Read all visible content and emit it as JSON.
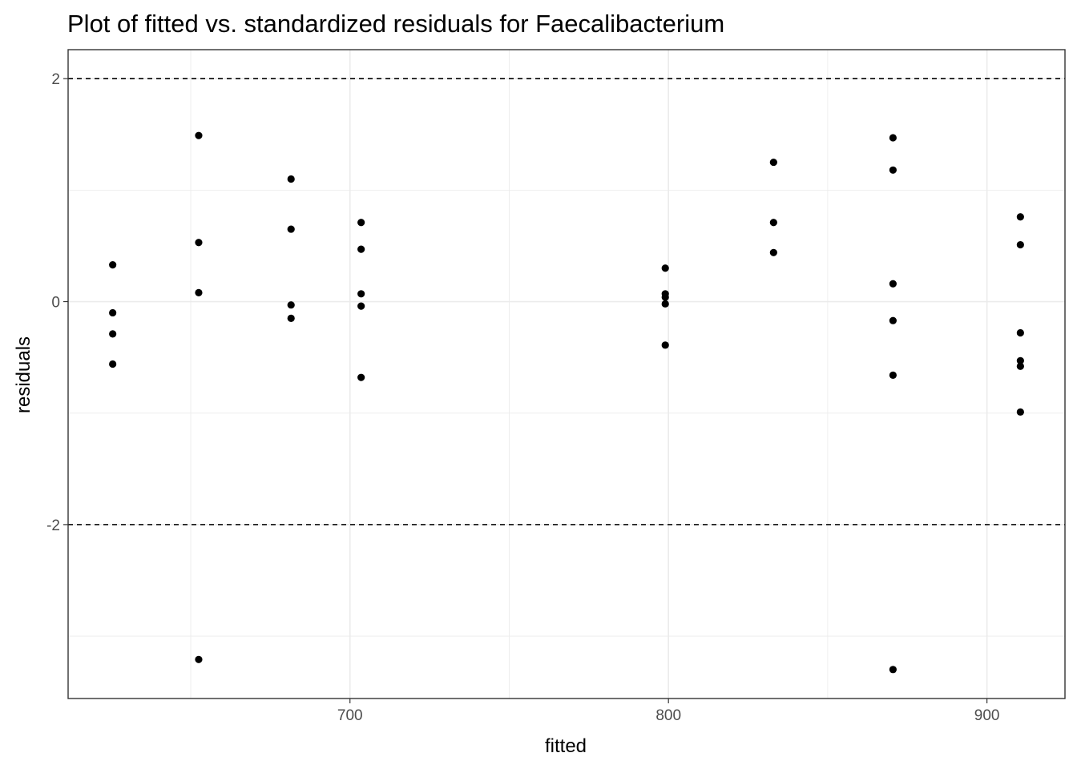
{
  "chart_data": {
    "type": "scatter",
    "title": "Plot of fitted vs. standardized residuals for Faecalibacterium",
    "xlabel": "fitted",
    "ylabel": "residuals",
    "xlim": [
      611.5,
      924.5
    ],
    "ylim": [
      -3.56,
      2.26
    ],
    "x_ticks": [
      700,
      800,
      900
    ],
    "x_tick_labels": [
      "700",
      "800",
      "900"
    ],
    "x_minor_gridlines": [
      650,
      750,
      850
    ],
    "y_ticks": [
      2,
      0,
      -2
    ],
    "y_tick_labels": [
      "2",
      "0",
      "-2"
    ],
    "y_minor_gridlines": [
      1,
      -1,
      -3
    ],
    "grid": true,
    "reference_lines": [
      {
        "y": 2,
        "style": "dashed"
      },
      {
        "y": -2,
        "style": "dashed"
      }
    ],
    "colors": {
      "points": "#000000",
      "reference_line": "#000000",
      "grid": "#ebebeb",
      "panel_border": "#333333",
      "background": "#ffffff"
    },
    "points": [
      {
        "x": 625.5,
        "y": 0.33
      },
      {
        "x": 625.5,
        "y": -0.1
      },
      {
        "x": 625.5,
        "y": -0.29
      },
      {
        "x": 625.5,
        "y": -0.56
      },
      {
        "x": 652.5,
        "y": 1.49
      },
      {
        "x": 652.5,
        "y": 0.53
      },
      {
        "x": 652.5,
        "y": 0.08
      },
      {
        "x": 652.5,
        "y": -3.21
      },
      {
        "x": 681.5,
        "y": 1.1
      },
      {
        "x": 681.5,
        "y": 0.65
      },
      {
        "x": 681.5,
        "y": -0.03
      },
      {
        "x": 681.5,
        "y": -0.15
      },
      {
        "x": 703.5,
        "y": 0.71
      },
      {
        "x": 703.5,
        "y": 0.47
      },
      {
        "x": 703.5,
        "y": 0.07
      },
      {
        "x": 703.5,
        "y": -0.04
      },
      {
        "x": 703.5,
        "y": -0.68
      },
      {
        "x": 799.0,
        "y": 0.3
      },
      {
        "x": 799.0,
        "y": 0.07
      },
      {
        "x": 799.0,
        "y": 0.04
      },
      {
        "x": 799.0,
        "y": -0.02
      },
      {
        "x": 799.0,
        "y": -0.39
      },
      {
        "x": 833.0,
        "y": 1.25
      },
      {
        "x": 833.0,
        "y": 0.71
      },
      {
        "x": 833.0,
        "y": 0.44
      },
      {
        "x": 870.5,
        "y": 1.47
      },
      {
        "x": 870.5,
        "y": 1.18
      },
      {
        "x": 870.5,
        "y": 0.16
      },
      {
        "x": 870.5,
        "y": -0.17
      },
      {
        "x": 870.5,
        "y": -0.66
      },
      {
        "x": 870.5,
        "y": -3.3
      },
      {
        "x": 910.5,
        "y": 0.76
      },
      {
        "x": 910.5,
        "y": 0.51
      },
      {
        "x": 910.5,
        "y": -0.28
      },
      {
        "x": 910.5,
        "y": -0.53
      },
      {
        "x": 910.5,
        "y": -0.58
      },
      {
        "x": 910.5,
        "y": -0.99
      }
    ]
  }
}
